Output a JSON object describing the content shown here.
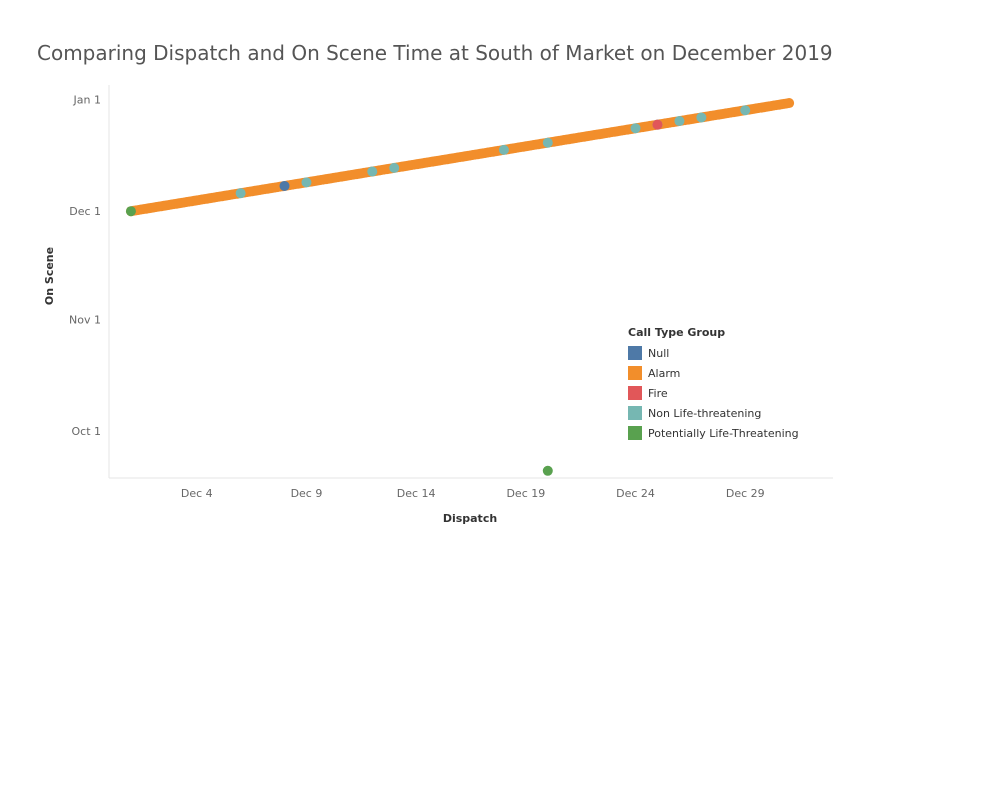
{
  "chart_data": {
    "type": "scatter",
    "title": "Comparing Dispatch and On Scene Time at South of Market on December 2019",
    "xlabel": "Dispatch",
    "ylabel": "On Scene",
    "x_ticks": [
      "Dec 4",
      "Dec 9",
      "Dec 14",
      "Dec 19",
      "Dec 24",
      "Dec 29"
    ],
    "y_ticks": [
      "Oct 1",
      "Nov 1",
      "Dec 1",
      "Jan 1"
    ],
    "xlim": [
      "2019-11-30",
      "2020-01-02"
    ],
    "ylim": [
      "2019-09-18",
      "2020-01-05"
    ],
    "grid": false,
    "legend": {
      "title": "Call Type Group",
      "position": "right",
      "items": [
        {
          "name": "Null",
          "color": "#4e79a7"
        },
        {
          "name": "Alarm",
          "color": "#f28e2b"
        },
        {
          "name": "Fire",
          "color": "#e15759"
        },
        {
          "name": "Non Life-threatening",
          "color": "#76b7b2"
        },
        {
          "name": "Potentially Life-Threatening",
          "color": "#59a14f"
        }
      ]
    },
    "series": [
      {
        "name": "Alarm",
        "color": "#f28e2b",
        "x": [
          "2019-12-01",
          "2019-12-31"
        ],
        "y": [
          "2019-12-01",
          "2019-12-31"
        ],
        "mode": "continuous"
      },
      {
        "name": "Non Life-threatening",
        "color": "#76b7b2",
        "x": [
          "2019-12-06",
          "2019-12-09",
          "2019-12-12",
          "2019-12-13",
          "2019-12-18",
          "2019-12-20",
          "2019-12-24",
          "2019-12-25",
          "2019-12-26",
          "2019-12-27",
          "2019-12-29"
        ],
        "y": [
          "2019-12-06",
          "2019-12-09",
          "2019-12-12",
          "2019-12-13",
          "2019-12-18",
          "2019-12-20",
          "2019-12-24",
          "2019-12-25",
          "2019-12-26",
          "2019-12-27",
          "2019-12-29"
        ]
      },
      {
        "name": "Null",
        "color": "#4e79a7",
        "x": [
          "2019-12-08"
        ],
        "y": [
          "2019-12-08"
        ]
      },
      {
        "name": "Fire",
        "color": "#e15759",
        "x": [
          "2019-12-25"
        ],
        "y": [
          "2019-12-25"
        ]
      },
      {
        "name": "Potentially Life-Threatening",
        "color": "#59a14f",
        "x": [
          "2019-12-01",
          "2019-12-20"
        ],
        "y": [
          "2019-12-01",
          "2019-09-20"
        ]
      }
    ]
  }
}
